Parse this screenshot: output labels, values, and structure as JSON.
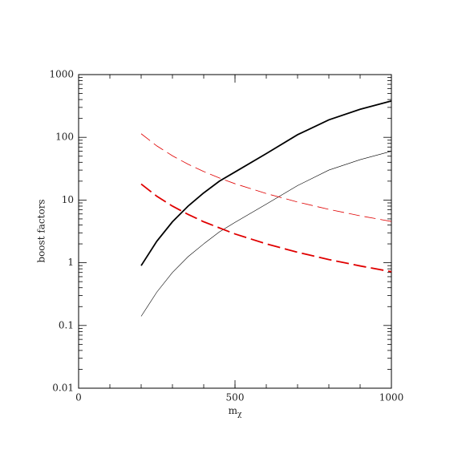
{
  "chart_data": {
    "type": "line",
    "xlabel": {
      "text": "m",
      "subscript": "χ"
    },
    "ylabel": "boost  factors",
    "x": [
      200,
      250,
      300,
      350,
      400,
      450,
      500,
      600,
      700,
      800,
      900,
      1000
    ],
    "series": [
      {
        "color": "#000000",
        "width": 1.8,
        "dash": "none",
        "values": [
          0.9,
          2.2,
          4.5,
          8,
          13,
          20,
          28,
          55,
          110,
          190,
          280,
          380
        ]
      },
      {
        "color": "#000000",
        "width": 0.6,
        "dash": "none",
        "values": [
          0.14,
          0.34,
          0.7,
          1.25,
          2,
          3.1,
          4.4,
          8.6,
          17,
          30,
          44,
          60
        ]
      },
      {
        "color": "#e00000",
        "width": 0.8,
        "dash": "14 6",
        "values": [
          114,
          73,
          50.7,
          37.2,
          28.5,
          22.5,
          18.2,
          12.7,
          9.3,
          7.1,
          5.6,
          4.56
        ]
      },
      {
        "color": "#e00000",
        "width": 1.8,
        "dash": "16 6",
        "values": [
          18,
          11.5,
          8,
          5.9,
          4.5,
          3.6,
          2.88,
          2,
          1.47,
          1.125,
          0.89,
          0.72
        ]
      }
    ],
    "xlim": [
      0,
      1000
    ],
    "xticks": [
      0,
      500,
      1000
    ],
    "xminor": 100,
    "ylim": [
      0.01,
      1000
    ],
    "yticks": [
      0.01,
      0.1,
      1,
      10,
      100,
      1000
    ],
    "ylog": true,
    "minor_ticks": true
  }
}
